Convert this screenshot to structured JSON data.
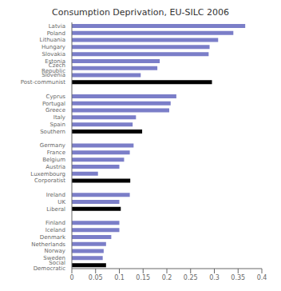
{
  "chart_data": {
    "type": "bar",
    "title": "Consumption Deprivation, EU-SILC 2006",
    "orientation": "horizontal",
    "categories": [
      "Latvia",
      "Poland",
      "Lithuania",
      "Hungary",
      "Slovakia",
      "Estonia",
      "Czech Republic",
      "Slovenia",
      "Post-communist",
      null,
      "Cyprus",
      "Portugal",
      "Greece",
      "Italy",
      "Spain",
      "Southern",
      null,
      "Germany",
      "France",
      "Belgium",
      "Austria",
      "Luxembourg",
      "Corporatist",
      null,
      "Ireland",
      "UK",
      "Liberal",
      null,
      "Finland",
      "Iceland",
      "Denmark",
      "Netherlands",
      "Norway",
      "Sweden",
      "Social Democratic"
    ],
    "values": [
      0.365,
      0.34,
      0.308,
      0.29,
      0.288,
      0.185,
      0.18,
      0.145,
      0.295,
      null,
      0.22,
      0.208,
      0.205,
      0.135,
      0.128,
      0.148,
      null,
      0.13,
      0.122,
      0.11,
      0.1,
      0.055,
      0.123,
      null,
      0.122,
      0.1,
      0.103,
      null,
      0.1,
      0.1,
      0.083,
      0.072,
      0.067,
      0.065,
      0.072
    ],
    "colors": [
      "#7b7ec8",
      "#7b7ec8",
      "#7b7ec8",
      "#7b7ec8",
      "#7b7ec8",
      "#7b7ec8",
      "#7b7ec8",
      "#7b7ec8",
      "#000000",
      null,
      "#7b7ec8",
      "#7b7ec8",
      "#7b7ec8",
      "#7b7ec8",
      "#7b7ec8",
      "#000000",
      null,
      "#7b7ec8",
      "#7b7ec8",
      "#7b7ec8",
      "#7b7ec8",
      "#7b7ec8",
      "#000000",
      null,
      "#7b7ec8",
      "#7b7ec8",
      "#000000",
      null,
      "#7b7ec8",
      "#7b7ec8",
      "#7b7ec8",
      "#7b7ec8",
      "#7b7ec8",
      "#7b7ec8",
      "#000000"
    ],
    "xlim": [
      0,
      0.4
    ],
    "xticks": [
      0,
      0.05,
      0.1,
      0.15,
      0.2,
      0.25,
      0.3,
      0.35,
      0.4
    ],
    "grid": false
  }
}
